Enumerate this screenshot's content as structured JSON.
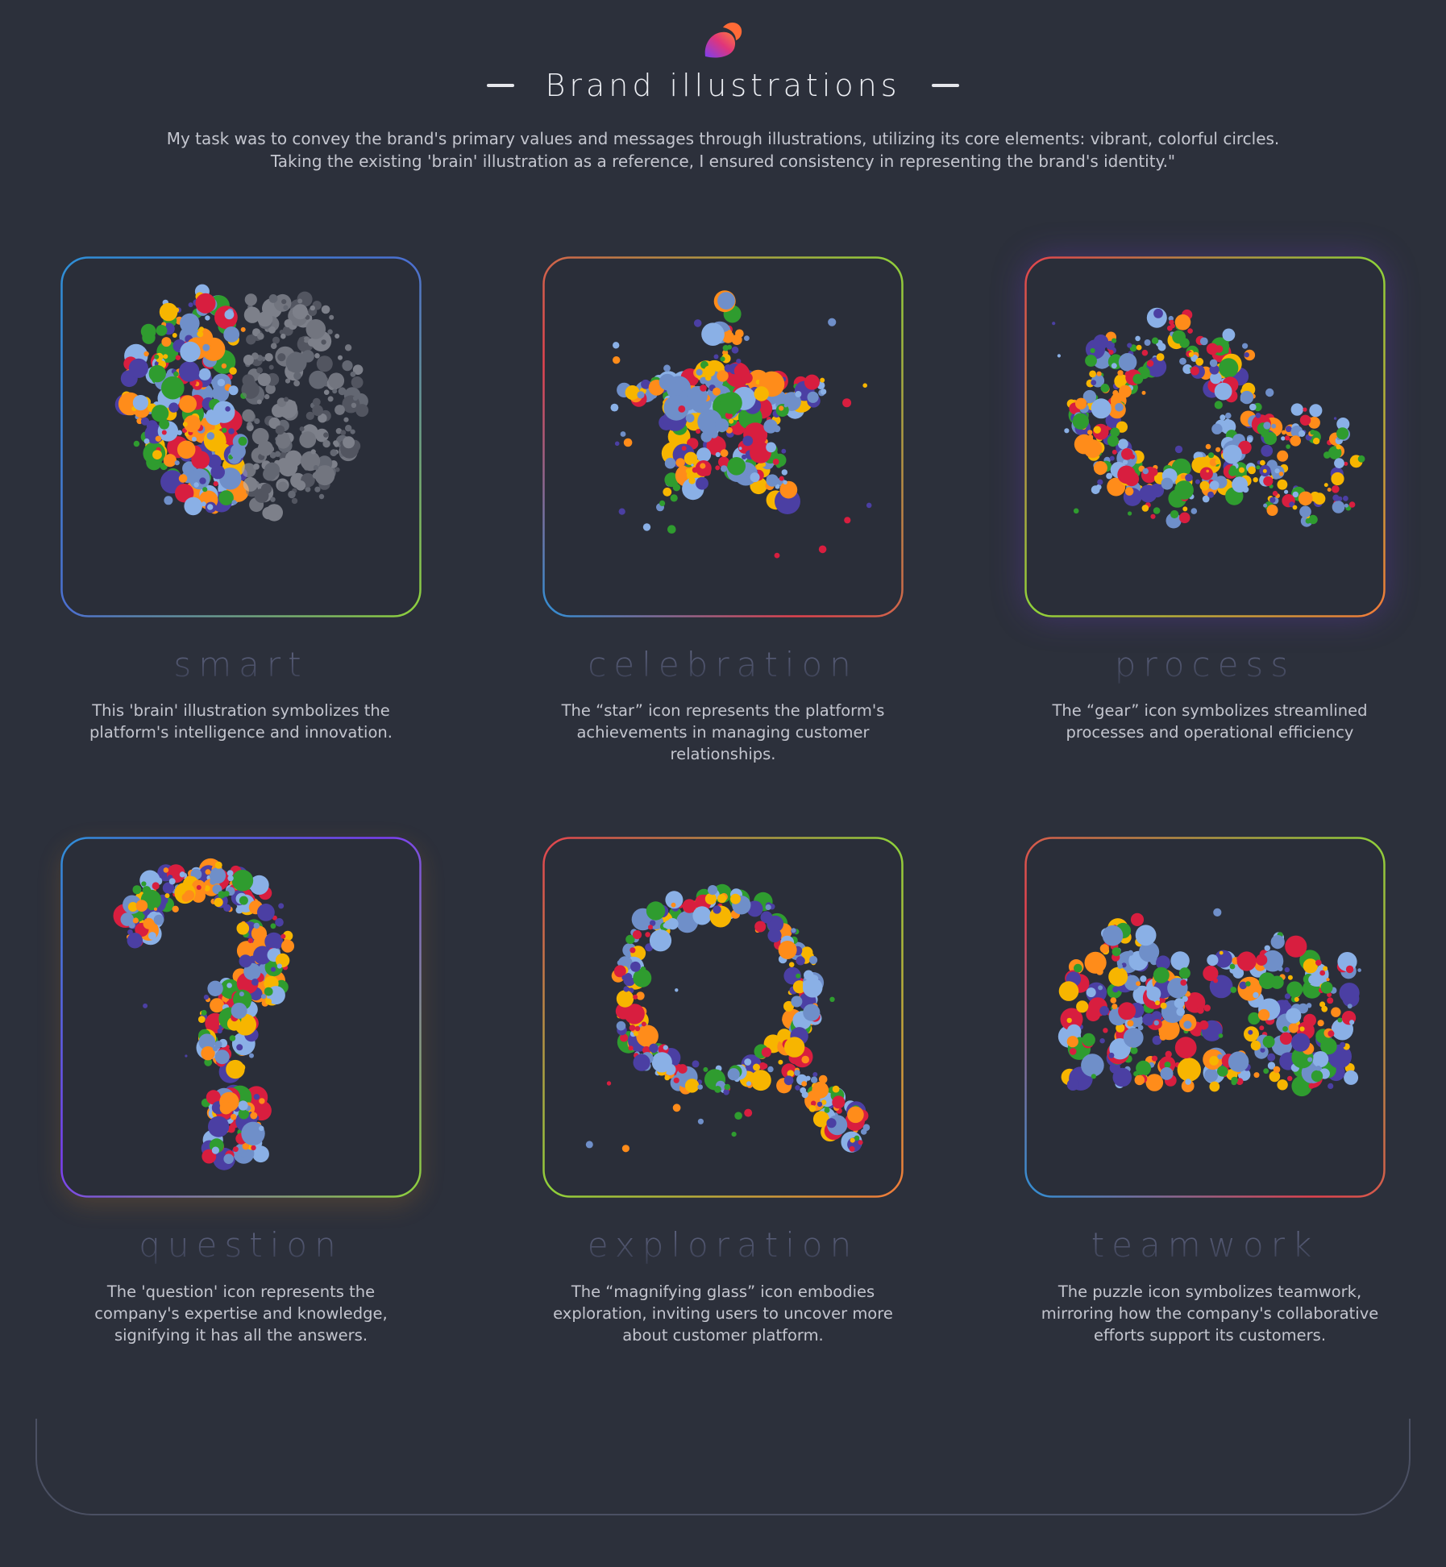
{
  "header": {
    "logo_icon": "brand-blob-icon",
    "title": "Brand illustrations",
    "intro_lines": [
      "My task was to convey the brand's primary values and messages through illustrations, utilizing its core elements: vibrant, colorful circles.",
      "Taking the existing 'brain' illustration as a reference, I ensured consistency in representing the brand's identity.\""
    ]
  },
  "palette": [
    "#f7b500",
    "#ff8c1a",
    "#d81e3f",
    "#2f9c2f",
    "#4b3fa3",
    "#6f8fc9",
    "#8ab0e6"
  ],
  "cards": [
    {
      "key": "brain",
      "label": "smart",
      "description": [
        "This 'brain' illustration symbolizes the",
        "platform's intelligence and innovation."
      ],
      "icon": "brain-icon",
      "border_colors": [
        "#2f8fd6",
        "#8fd13a"
      ]
    },
    {
      "key": "star",
      "label": "celebration",
      "description": [
        "The “star” icon represents the platform's",
        "achievements in managing customer",
        "relationships."
      ],
      "icon": "star-icon",
      "border_colors": [
        "#e2434f",
        "#8fd13a"
      ]
    },
    {
      "key": "gear",
      "label": "process",
      "description": [
        "The “gear” icon symbolizes streamlined",
        "processes and operational efficiency"
      ],
      "icon": "gear-icon",
      "border_colors": [
        "#e2434f",
        "#8fd13a"
      ]
    },
    {
      "key": "question",
      "label": "question",
      "description": [
        "The 'question' icon represents the",
        "company's expertise and knowledge,",
        "signifying it has all the answers."
      ],
      "icon": "question-mark-icon",
      "border_colors": [
        "#2f8fd6",
        "#8fd13a"
      ]
    },
    {
      "key": "magnifier",
      "label": "exploration",
      "description": [
        "The “magnifying glass” icon embodies",
        "exploration, inviting users to uncover more",
        "about customer platform."
      ],
      "icon": "magnifying-glass-icon",
      "border_colors": [
        "#e2434f",
        "#8fd13a"
      ]
    },
    {
      "key": "puzzle",
      "label": "teamwork",
      "description": [
        "The puzzle icon symbolizes teamwork,",
        "mirroring how the company's collaborative",
        "efforts support its customers."
      ],
      "icon": "puzzle-icon",
      "border_colors": [
        "#e2434f",
        "#8fd13a"
      ]
    }
  ]
}
